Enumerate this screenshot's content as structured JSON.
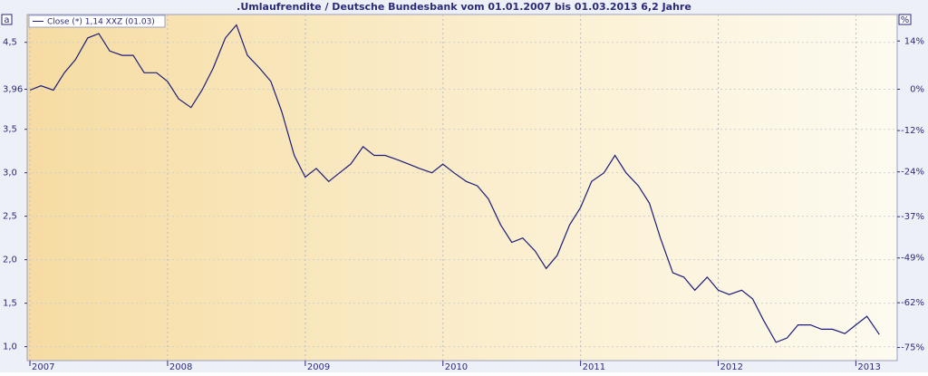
{
  "chart_data": {
    "type": "line",
    "title": ".Umlaufrendite / Deutsche Bundesbank vom 01.01.2007 bis 01.03.2013 6,2 Jahre",
    "ylabel": "a",
    "y2label": "%",
    "x": [
      2007.0,
      2007.08,
      2007.17,
      2007.25,
      2007.33,
      2007.42,
      2007.5,
      2007.58,
      2007.67,
      2007.75,
      2007.83,
      2007.92,
      2008.0,
      2008.08,
      2008.17,
      2008.25,
      2008.33,
      2008.42,
      2008.5,
      2008.58,
      2008.67,
      2008.75,
      2008.83,
      2008.92,
      2009.0,
      2009.08,
      2009.17,
      2009.25,
      2009.33,
      2009.42,
      2009.5,
      2009.58,
      2009.67,
      2009.75,
      2009.83,
      2009.92,
      2010.0,
      2010.08,
      2010.17,
      2010.25,
      2010.33,
      2010.42,
      2010.5,
      2010.58,
      2010.67,
      2010.75,
      2010.83,
      2010.92,
      2011.0,
      2011.08,
      2011.17,
      2011.25,
      2011.33,
      2011.42,
      2011.5,
      2011.58,
      2011.67,
      2011.75,
      2011.83,
      2011.92,
      2012.0,
      2012.08,
      2012.17,
      2012.25,
      2012.33,
      2012.42,
      2012.5,
      2012.58,
      2012.67,
      2012.75,
      2012.83,
      2012.92,
      2013.0,
      2013.08,
      2013.17
    ],
    "series": [
      {
        "name": "Close (*) 1,14 XXZ (01.03)",
        "color": "#1c1c7a",
        "values": [
          3.95,
          4.0,
          3.95,
          4.15,
          4.3,
          4.55,
          4.6,
          4.4,
          4.35,
          4.35,
          4.15,
          4.15,
          4.05,
          3.85,
          3.75,
          3.95,
          4.2,
          4.55,
          4.7,
          4.35,
          4.2,
          4.05,
          3.7,
          3.2,
          2.95,
          3.05,
          2.9,
          3.0,
          3.1,
          3.3,
          3.2,
          3.2,
          3.15,
          3.1,
          3.05,
          3.0,
          3.1,
          3.0,
          2.9,
          2.85,
          2.7,
          2.4,
          2.2,
          2.25,
          2.1,
          1.9,
          2.05,
          2.4,
          2.6,
          2.9,
          3.0,
          3.2,
          3.0,
          2.85,
          2.65,
          2.25,
          1.85,
          1.8,
          1.65,
          1.8,
          1.65,
          1.6,
          1.65,
          1.55,
          1.3,
          1.05,
          1.1,
          1.25,
          1.25,
          1.2,
          1.2,
          1.15,
          1.25,
          1.35,
          1.14
        ]
      }
    ],
    "xlim": [
      2006.98,
      2013.3
    ],
    "xticks": [
      2007,
      2008,
      2009,
      2010,
      2011,
      2012,
      2013
    ],
    "ylim": [
      0.84,
      4.82
    ],
    "yticks": [
      {
        "value": 1.0,
        "label": "1,0"
      },
      {
        "value": 1.5,
        "label": "1,5"
      },
      {
        "value": 2.0,
        "label": "2,0"
      },
      {
        "value": 2.5,
        "label": "2,5"
      },
      {
        "value": 3.0,
        "label": "3,0"
      },
      {
        "value": 3.5,
        "label": "3,5"
      },
      {
        "value": 3.96,
        "label": "3,96"
      },
      {
        "value": 4.5,
        "label": "4,5"
      }
    ],
    "y2lim": [
      -78.8,
      21.7
    ],
    "y2ticks": [
      {
        "value": 14,
        "label": "14%"
      },
      {
        "value": 0,
        "label": "0%"
      },
      {
        "value": -12,
        "label": "-12%"
      },
      {
        "value": -24,
        "label": "-24%"
      },
      {
        "value": -37,
        "label": "-37%"
      },
      {
        "value": -49,
        "label": "-49%"
      },
      {
        "value": -62,
        "label": "-62%"
      },
      {
        "value": -75,
        "label": "-75%"
      }
    ],
    "grid": true
  }
}
